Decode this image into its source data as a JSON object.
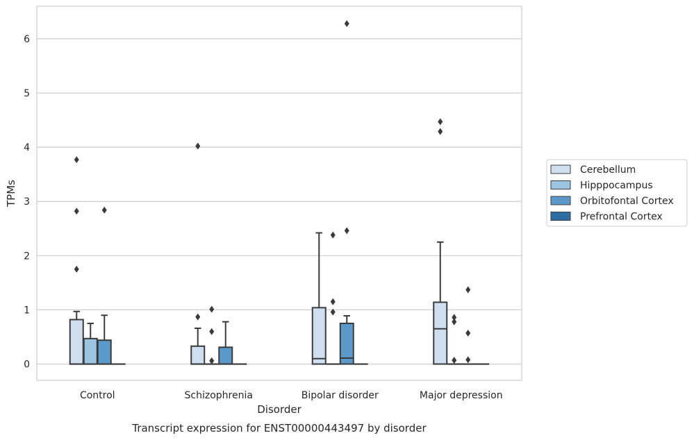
{
  "chart_data": {
    "type": "box",
    "title": "Transcript expression for ENST00000443497 by disorder",
    "xlabel": "Disorder",
    "ylabel": "TPMs",
    "ylim": [
      -0.3,
      6.6
    ],
    "yticks": [
      0,
      1,
      2,
      3,
      4,
      5,
      6
    ],
    "grid": "horizontal",
    "legend_position": "right",
    "categories": [
      "Control",
      "Schizophrenia",
      "Bipolar disorder",
      "Major depression"
    ],
    "series": [
      {
        "name": "Cerebellum",
        "color": "#cfdff0",
        "boxes": [
          {
            "whislo": 0,
            "q1": 0,
            "med": 0,
            "q3": 0.82,
            "whishi": 0.97,
            "fliers": [
              1.75,
              2.82,
              3.77
            ]
          },
          {
            "whislo": 0,
            "q1": 0,
            "med": 0,
            "q3": 0.33,
            "whishi": 0.66,
            "fliers": [
              0.87,
              4.02
            ]
          },
          {
            "whislo": 0,
            "q1": 0,
            "med": 0.1,
            "q3": 1.04,
            "whishi": 2.42,
            "fliers": []
          },
          {
            "whislo": 0,
            "q1": 0,
            "med": 0.65,
            "q3": 1.14,
            "whishi": 2.25,
            "fliers": [
              4.29,
              4.47
            ]
          }
        ]
      },
      {
        "name": "Hipppocampus",
        "color": "#9ac4df",
        "boxes": [
          {
            "whislo": 0,
            "q1": 0,
            "med": 0,
            "q3": 0.47,
            "whishi": 0.75,
            "fliers": []
          },
          {
            "whislo": 0,
            "q1": 0,
            "med": 0,
            "q3": 0,
            "whishi": 0,
            "fliers": [
              0.06,
              0.6,
              1.01
            ]
          },
          {
            "whislo": 0,
            "q1": 0,
            "med": 0,
            "q3": 0,
            "whishi": 0,
            "fliers": [
              0.96,
              1.15,
              2.38
            ]
          },
          {
            "whislo": 0,
            "q1": 0,
            "med": 0,
            "q3": 0,
            "whishi": 0,
            "fliers": [
              0.07,
              0.78,
              0.86
            ]
          }
        ]
      },
      {
        "name": "Orbitofontal Cortex",
        "color": "#5a99c9",
        "boxes": [
          {
            "whislo": 0,
            "q1": 0,
            "med": 0,
            "q3": 0.44,
            "whishi": 0.9,
            "fliers": [
              2.84
            ]
          },
          {
            "whislo": 0,
            "q1": 0,
            "med": 0,
            "q3": 0.31,
            "whishi": 0.78,
            "fliers": []
          },
          {
            "whislo": 0,
            "q1": 0,
            "med": 0.11,
            "q3": 0.75,
            "whishi": 0.89,
            "fliers": [
              2.46,
              6.28
            ]
          },
          {
            "whislo": 0,
            "q1": 0,
            "med": 0,
            "q3": 0,
            "whishi": 0,
            "fliers": [
              0.08,
              0.57,
              1.37
            ]
          }
        ]
      },
      {
        "name": "Prefrontal Cortex",
        "color": "#2e6ca4",
        "boxes": [
          {
            "whislo": 0,
            "q1": 0,
            "med": 0,
            "q3": 0,
            "whishi": 0,
            "fliers": []
          },
          {
            "whislo": 0,
            "q1": 0,
            "med": 0,
            "q3": 0,
            "whishi": 0,
            "fliers": []
          },
          {
            "whislo": 0,
            "q1": 0,
            "med": 0,
            "q3": 0,
            "whishi": 0,
            "fliers": []
          },
          {
            "whislo": 0,
            "q1": 0,
            "med": 0,
            "q3": 0,
            "whishi": 0,
            "fliers": []
          }
        ]
      }
    ],
    "colors": {
      "frame": "#cccccc",
      "grid": "#cccccc",
      "line": "#3a3a3a",
      "text": "#262626"
    }
  }
}
